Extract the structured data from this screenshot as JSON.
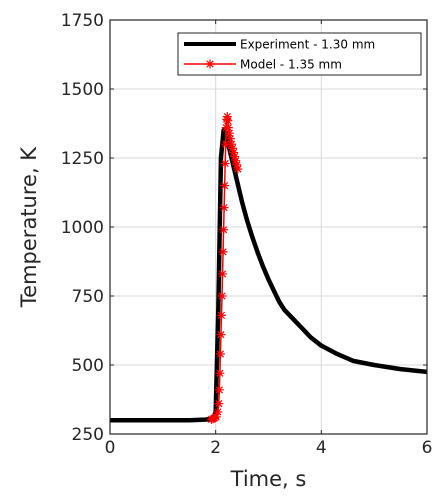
{
  "chart_data": {
    "type": "line",
    "title": "",
    "xlabel": "Time, s",
    "ylabel": "Temperature, K",
    "xlim": [
      0,
      6
    ],
    "ylim": [
      250,
      1750
    ],
    "xticks": [
      0,
      2,
      4,
      6
    ],
    "yticks": [
      250,
      500,
      750,
      1000,
      1250,
      1500,
      1750
    ],
    "grid": true,
    "legend_position": "top-right",
    "series": [
      {
        "name": "Experiment - 1.30 mm",
        "color": "#000000",
        "marker": "none",
        "x": [
          0,
          0.5,
          1.0,
          1.5,
          1.8,
          1.95,
          2.0,
          2.05,
          2.1,
          2.15,
          2.2,
          2.25,
          2.3,
          2.4,
          2.5,
          2.6,
          2.7,
          2.8,
          2.9,
          3.0,
          3.1,
          3.2,
          3.3,
          3.4,
          3.5,
          3.6,
          3.8,
          4.0,
          4.3,
          4.6,
          5.0,
          5.5,
          6.0
        ],
        "y": [
          300,
          300,
          300,
          300,
          302,
          305,
          330,
          700,
          1250,
          1350,
          1340,
          1290,
          1250,
          1170,
          1090,
          1020,
          960,
          905,
          855,
          810,
          770,
          730,
          700,
          680,
          660,
          640,
          600,
          570,
          540,
          515,
          500,
          485,
          475
        ]
      },
      {
        "name": "Model - 1.35 mm",
        "color": "#ff0000",
        "marker": "asterisk",
        "x": [
          1.92,
          1.95,
          1.98,
          2.01,
          2.04,
          2.06,
          2.07,
          2.08,
          2.09,
          2.1,
          2.11,
          2.12,
          2.13,
          2.14,
          2.15,
          2.16,
          2.17,
          2.18,
          2.19,
          2.2,
          2.21,
          2.22,
          2.23,
          2.24,
          2.26,
          2.28,
          2.3,
          2.32,
          2.34,
          2.36,
          2.38,
          2.4,
          2.42
        ],
        "y": [
          303,
          305,
          308,
          312,
          330,
          360,
          410,
          470,
          540,
          610,
          680,
          750,
          830,
          910,
          990,
          1070,
          1150,
          1230,
          1300,
          1360,
          1390,
          1400,
          1385,
          1360,
          1340,
          1320,
          1300,
          1285,
          1270,
          1255,
          1240,
          1225,
          1210
        ]
      }
    ]
  }
}
